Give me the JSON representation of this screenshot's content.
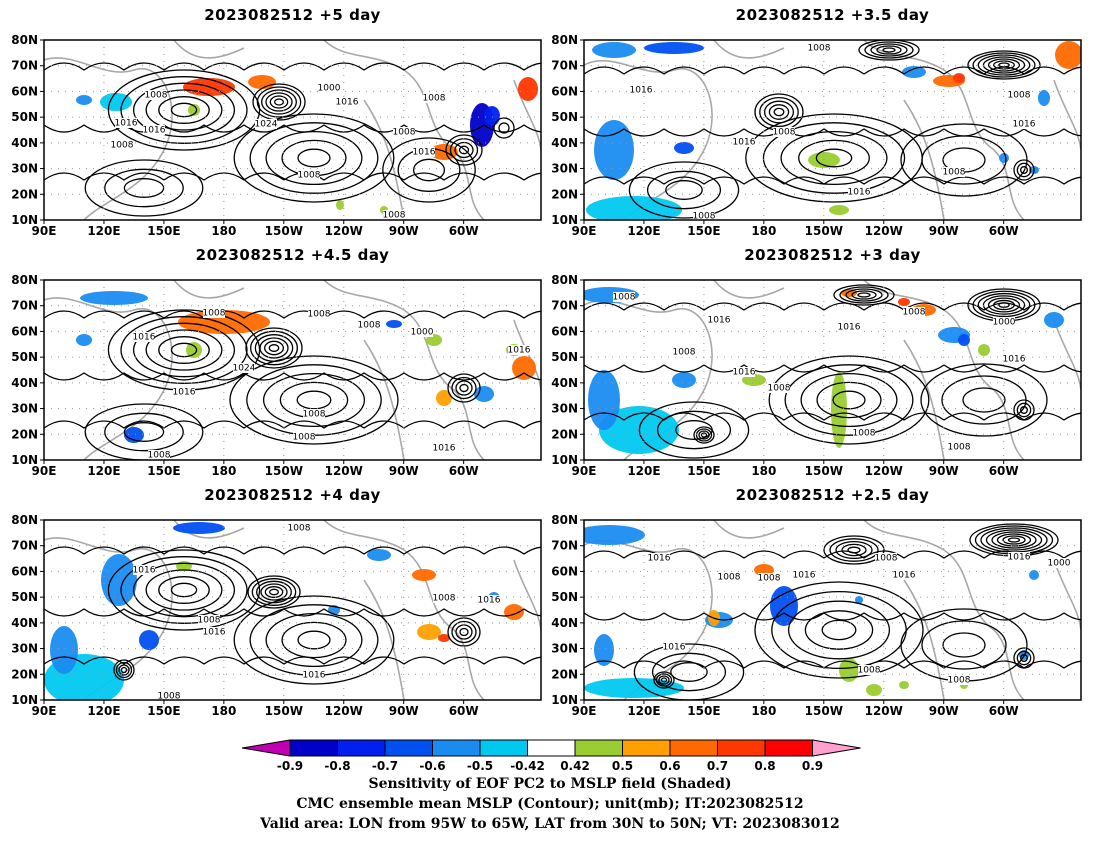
{
  "panels": [
    {
      "title": "2023082512 +5 day",
      "contour_labels": [
        "1008",
        "1016",
        "1016",
        "1008",
        "1000",
        "1024",
        "1008",
        "1016",
        "1008",
        "1008",
        "1016",
        "1008"
      ]
    },
    {
      "title": "2023082512 +3.5 day",
      "contour_labels": [
        "1008",
        "1016",
        "1008",
        "1016",
        "1016",
        "1008",
        "1008",
        "1016",
        "1008"
      ]
    },
    {
      "title": "2023082512 +4.5 day",
      "contour_labels": [
        "1008",
        "1016",
        "1008",
        "1008",
        "1000",
        "1016",
        "1024",
        "1016",
        "1008",
        "1008",
        "1016",
        "1008"
      ]
    },
    {
      "title": "2023082512 +3 day",
      "contour_labels": [
        "1008",
        "1016",
        "1008",
        "1016",
        "1008",
        "1016",
        "1008",
        "1000",
        "1016",
        "1008",
        "1008"
      ]
    },
    {
      "title": "2023082512 +4 day",
      "contour_labels": [
        "1008",
        "1016",
        "1008",
        "1016",
        "1016",
        "1008",
        "1016",
        "1008"
      ]
    },
    {
      "title": "2023082512 +2.5 day",
      "contour_labels": [
        "1016",
        "1008",
        "1008",
        "1016",
        "1008",
        "1016",
        "1016",
        "1000",
        "1016",
        "1008",
        "1008"
      ]
    }
  ],
  "axes": {
    "lat_labels": [
      "80N",
      "70N",
      "60N",
      "50N",
      "40N",
      "30N",
      "20N",
      "10N"
    ],
    "lon_labels": [
      "90E",
      "120E",
      "150E",
      "180",
      "150W",
      "120W",
      "90W",
      "60W"
    ]
  },
  "colorbar": {
    "ticks": [
      "-0.9",
      "-0.8",
      "-0.7",
      "-0.6",
      "-0.5",
      "-0.42",
      "0.42",
      "0.5",
      "0.6",
      "0.7",
      "0.8",
      "0.9"
    ],
    "colors": [
      "#c000b0",
      "#0000c8",
      "#0020f0",
      "#0050f0",
      "#1a8cf0",
      "#00c8f0",
      "#ffffff",
      "#9acd32",
      "#ffa000",
      "#ff6a00",
      "#ff3800",
      "#ff0000",
      "#ffa0d0"
    ]
  },
  "caption": {
    "line1": "Sensitivity of EOF PC2 to MSLP field (Shaded)",
    "line2": "CMC ensemble mean MSLP (Contour); unit(mb); IT:2023082512",
    "line3": "Valid area: LON from 95W to 65W, LAT from 30N to 50N; VT: 2023083012"
  }
}
